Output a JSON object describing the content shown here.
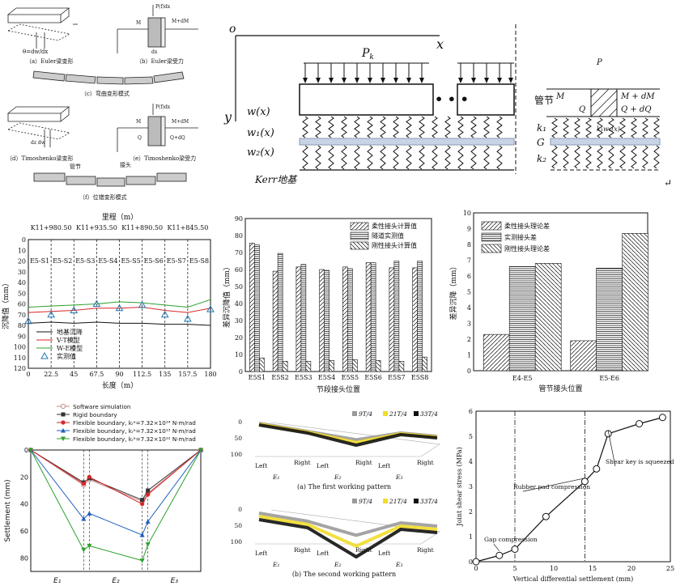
{
  "beam_models": {
    "euler_deform": "（a）Euler梁变形",
    "euler_force": "（b）Euler梁受力",
    "bend_mode": "（c）弯曲变形模式",
    "timo_deform": "（d）Timoshenko梁变形",
    "timo_force": "（e）Timoshenko梁受力",
    "shear_mode": "（f）位错变形模式",
    "pipe_label": "管节",
    "joint_label": "接头",
    "force_top": "P(f)dx",
    "force_right": "M+dM",
    "force_left": "M",
    "q_left": "Q",
    "q_right": "Q+dQ",
    "dx": "dx",
    "force_top2": "P(f)dx"
  },
  "kerr": {
    "origin": "o",
    "x_axis": "x",
    "y_axis": "y",
    "load": "P",
    "load_sub": "k",
    "w": "w(x)",
    "w1": "w₁(x)",
    "w2": "w₂(x)",
    "foundation": "Kerr地基",
    "pipe": "管节",
    "k1": "k₁",
    "G": "G",
    "k2": "k₂",
    "M": "M",
    "Q": "Q",
    "M_dM": "M + dM",
    "Q_dQ": "Q + dQ",
    "pk": "P",
    "k1w1": "k₁w₁(x)"
  },
  "chart_data": [
    {
      "type": "line",
      "title": "里程（m）",
      "top_ticks": [
        "K11+980.50",
        "K11+935.50",
        "K11+890.50",
        "K11+845.50"
      ],
      "segments": [
        "E5-S1",
        "E5-S2",
        "E5-S3",
        "E5-S4",
        "E5-S5",
        "E5-S6",
        "E5-S7",
        "E5-S8"
      ],
      "xlabel": "长度（m）",
      "ylabel": "沉降值（mm）",
      "xlim": [
        0,
        180
      ],
      "ylim": [
        0,
        120
      ],
      "x_ticks": [
        "0",
        "22.5",
        "45",
        "67.5",
        "90",
        "112.5",
        "135",
        "157.5",
        "180"
      ],
      "y_ticks": [
        "0",
        "10",
        "20",
        "30",
        "40",
        "50",
        "60",
        "70",
        "80",
        "90",
        "100",
        "110",
        "120"
      ],
      "series": [
        {
          "name": "地基沉降",
          "color": "#111111",
          "x": [
            0,
            22.5,
            45,
            67.5,
            90,
            112.5,
            135,
            157.5,
            180
          ],
          "y": [
            78,
            77,
            78,
            77,
            78,
            78,
            79,
            79,
            80
          ]
        },
        {
          "name": "V-T模型",
          "color": "#d62728",
          "x": [
            0,
            22.5,
            45,
            67.5,
            90,
            112.5,
            135,
            157.5,
            180
          ],
          "y": [
            68,
            67,
            66,
            64,
            64,
            63,
            66,
            68,
            64
          ]
        },
        {
          "name": "W-E模型",
          "color": "#2ca02c",
          "x": [
            0,
            22.5,
            45,
            67.5,
            90,
            112.5,
            135,
            157.5,
            180
          ],
          "y": [
            63,
            62,
            61,
            60,
            58,
            59,
            61,
            63,
            56
          ]
        },
        {
          "name": "实测值",
          "color": "#1f77b4",
          "marker": "triangle",
          "x": [
            0,
            22.5,
            45,
            67.5,
            90,
            112.5,
            135,
            157.5,
            180
          ],
          "y": [
            76,
            70,
            66,
            60,
            64,
            61,
            70,
            74,
            65
          ]
        }
      ]
    },
    {
      "type": "bar",
      "xlabel": "节段接头位置",
      "ylabel": "差异沉降值（mm）",
      "ylim": [
        0,
        90
      ],
      "y_ticks": [
        "0",
        "10",
        "20",
        "30",
        "40",
        "50",
        "60",
        "70",
        "80",
        "90"
      ],
      "categories": [
        "E5S1",
        "E5S2",
        "E5S3",
        "E5S4",
        "E5S5",
        "E5S6",
        "E5S7",
        "E5S8"
      ],
      "series": [
        {
          "name": "柔性接头计算值",
          "values": [
            75.5,
            59,
            61.5,
            60,
            61.5,
            64,
            61,
            61
          ]
        },
        {
          "name": "隧道实测值",
          "values": [
            74.5,
            69.5,
            63,
            59.5,
            60.5,
            64,
            65,
            65
          ]
        },
        {
          "name": "刚性接头计算值",
          "values": [
            8,
            6,
            6,
            6.5,
            7,
            6.5,
            6,
            8.5
          ]
        }
      ]
    },
    {
      "type": "bar",
      "xlabel": "管节接头位置",
      "ylabel": "差异沉降（mm）",
      "ylim": [
        0,
        10
      ],
      "y_ticks": [
        "0",
        "1",
        "2",
        "3",
        "4",
        "5",
        "6",
        "7",
        "8",
        "9",
        "10"
      ],
      "categories": [
        "E4-E5",
        "E5-E6"
      ],
      "series": [
        {
          "name": "柔性接头理论差",
          "values": [
            2.3,
            1.9
          ]
        },
        {
          "name": "实测接头差",
          "values": [
            6.6,
            6.5
          ]
        },
        {
          "name": "刚性接头理论差",
          "values": [
            6.8,
            8.7
          ]
        }
      ]
    },
    {
      "type": "line",
      "ylabel": "Settlement (mm)",
      "ylim": [
        0,
        90
      ],
      "y_ticks": [
        "0",
        "20",
        "40",
        "60",
        "80"
      ],
      "x_categories": [
        "E₁",
        "E₂",
        "E₃"
      ],
      "series": [
        {
          "name": "Software simulation",
          "color": "#c98a8a",
          "marker": "open-pentagon",
          "x": [
            0,
            1.4,
            1.55,
            2.95,
            3.1,
            4.5
          ],
          "y": [
            0,
            26,
            22,
            38,
            32,
            0
          ]
        },
        {
          "name": "Rigid boundary",
          "color": "#333333",
          "marker": "square",
          "x": [
            0,
            1.4,
            1.55,
            2.95,
            3.1,
            4.5
          ],
          "y": [
            0,
            24,
            21,
            37,
            30,
            0
          ]
        },
        {
          "name": "Flexible boundary, kᵣᵃ=7.32×10¹⁴ N·m/rad",
          "color": "#d62728",
          "marker": "circle",
          "x": [
            0,
            1.4,
            1.55,
            2.95,
            3.1,
            4.5
          ],
          "y": [
            0,
            25,
            20,
            40,
            33,
            0
          ]
        },
        {
          "name": "Flexible boundary, kᵣᵃ=7.32×10¹³ N·m/rad",
          "color": "#1f5fbf",
          "marker": "triangle",
          "x": [
            0,
            1.4,
            1.55,
            2.95,
            3.1,
            4.5
          ],
          "y": [
            0,
            51,
            47,
            63,
            53,
            0
          ]
        },
        {
          "name": "Flexible boundary, kᵣᵃ=7.32×10¹² N·m/rad",
          "color": "#2ca02c",
          "marker": "triangle-down",
          "x": [
            0,
            1.4,
            1.55,
            2.95,
            3.1,
            4.5
          ],
          "y": [
            0,
            74,
            71,
            82,
            70,
            0
          ]
        }
      ]
    },
    {
      "type": "line",
      "legend": [
        "9T/4",
        "21T/4",
        "33T/4"
      ],
      "y_ticks": [
        "0",
        "50",
        "100"
      ],
      "x_labels": [
        "Left",
        "Right",
        "Left",
        "Right",
        "Left",
        "Right"
      ],
      "x_subs": [
        "E₁",
        "E₂",
        "E₃"
      ],
      "panel_captions": [
        "(a) The first working pattern",
        "(b) The second working pattern"
      ]
    },
    {
      "type": "scatter",
      "xlabel": "Vertical differential settlement (mm)",
      "ylabel": "Joint shear stress (MPa)",
      "xlim": [
        0,
        25
      ],
      "ylim": [
        0,
        6
      ],
      "x_ticks": [
        "0",
        "5",
        "10",
        "15",
        "20",
        "25"
      ],
      "y_ticks": [
        "0",
        "1",
        "2",
        "3",
        "4",
        "5",
        "6"
      ],
      "x": [
        0,
        3,
        5,
        9,
        14,
        15.5,
        17,
        21,
        24
      ],
      "y": [
        0,
        0.25,
        0.5,
        1.8,
        3.2,
        3.7,
        5.1,
        5.5,
        5.75
      ],
      "annotations": [
        "Gap compression",
        "Rubber pad compression",
        "Shear key is squeezed"
      ]
    }
  ]
}
